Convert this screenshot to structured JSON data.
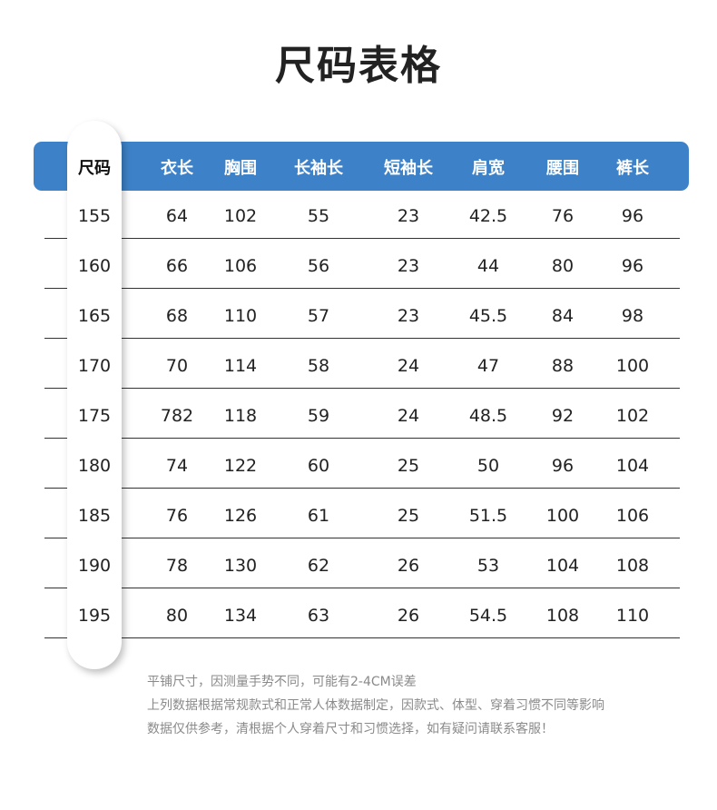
{
  "title": "尺码表格",
  "headers": [
    "尺码",
    "衣长",
    "胸围",
    "长袖长",
    "短袖长",
    "肩宽",
    "腰围",
    "裤长"
  ],
  "rows": [
    [
      "155",
      "64",
      "102",
      "55",
      "23",
      "42.5",
      "76",
      "96"
    ],
    [
      "160",
      "66",
      "106",
      "56",
      "23",
      "44",
      "80",
      "96"
    ],
    [
      "165",
      "68",
      "110",
      "57",
      "23",
      "45.5",
      "84",
      "98"
    ],
    [
      "170",
      "70",
      "114",
      "58",
      "24",
      "47",
      "88",
      "100"
    ],
    [
      "175",
      "782",
      "118",
      "59",
      "24",
      "48.5",
      "92",
      "102"
    ],
    [
      "180",
      "74",
      "122",
      "60",
      "25",
      "50",
      "96",
      "104"
    ],
    [
      "185",
      "76",
      "126",
      "61",
      "25",
      "51.5",
      "100",
      "106"
    ],
    [
      "190",
      "78",
      "130",
      "62",
      "26",
      "53",
      "104",
      "108"
    ],
    [
      "195",
      "80",
      "134",
      "63",
      "26",
      "54.5",
      "108",
      "110"
    ]
  ],
  "notes": [
    "平铺尺寸，因测量手势不同，可能有2-4CM误差",
    "上列数据根据常规款式和正常人体数据制定，因款式、体型、穿着习惯不同等影响",
    "数据仅供参考，清根据个人穿着尺寸和习惯选择，如有疑问请联系客服！"
  ],
  "colors": {
    "header": "#3d82c8"
  }
}
